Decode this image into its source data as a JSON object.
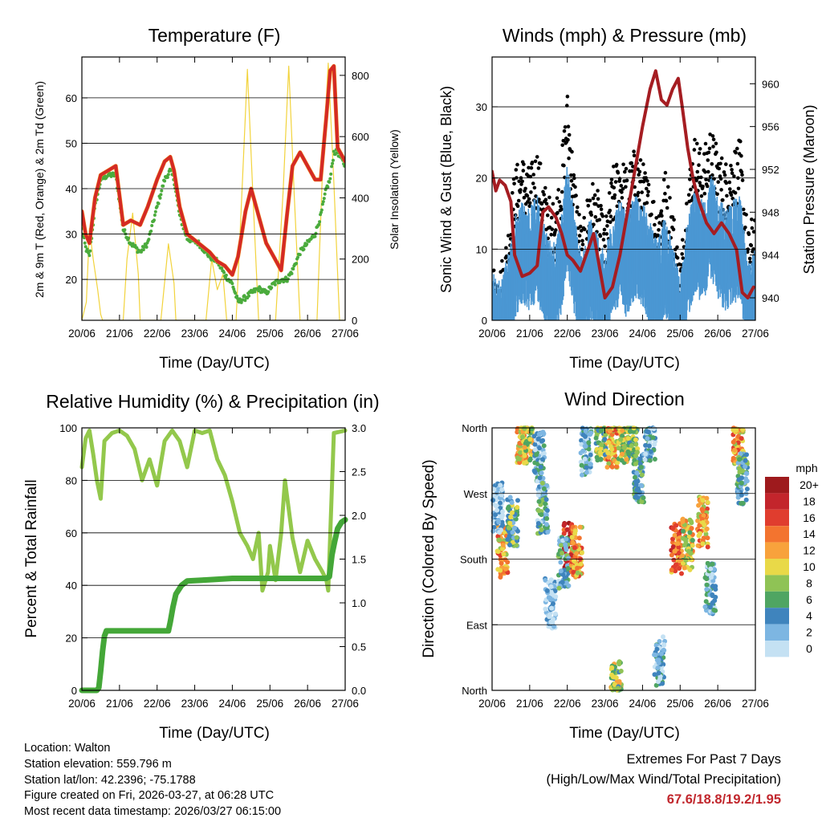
{
  "colors": {
    "temp_red": "#d42a25",
    "temp_orange": "#f08a1e",
    "dewpoint_green": "#4aab3c",
    "insolation_yellow": "#f2d33c",
    "wind_blue": "#4b97d3",
    "gust_black": "#000000",
    "pressure_maroon": "#a51d22",
    "rh_lightgreen": "#93c84c",
    "rain_green": "#44a738",
    "highlight_red": "#c1272d"
  },
  "panels": {
    "temperature": {
      "title": "Temperature (F)",
      "ylabel_left": "2m & 9m T (Red, Orange) & 2m Td (Green)",
      "ylabel_right": "Solar Insolation (Yellow)",
      "xlabel": "Time (Day/UTC)"
    },
    "winds": {
      "title": "Winds (mph) & Pressure (mb)",
      "ylabel_left": "Sonic Wind & Gust (Blue, Black)",
      "ylabel_right": "Station Pressure (Maroon)",
      "xlabel": "Time (Day/UTC)"
    },
    "humidity": {
      "title": "Relative Humidity (%) & Precipitation (in)",
      "ylabel_left": "Percent & Total Rainfall",
      "xlabel": "Time (Day/UTC)"
    },
    "direction": {
      "title": "Wind Direction",
      "ylabel_left": "Direction (Colored By Speed)",
      "xlabel": "Time (Day/UTC)"
    }
  },
  "info": {
    "location": "Location: Walton",
    "elevation": "Station elevation: 559.796 m",
    "latlon": "Station lat/lon: 42.2396; -75.1788",
    "created": "Figure created on Fri, 2026-03-27, at 06:28 UTC",
    "recent": "Most recent data timestamp: 2026/03/27 06:15:00"
  },
  "extremes": {
    "title": "Extremes For Past 7 Days",
    "subtitle": "(High/Low/Max Wind/Total Precipitation)",
    "values": "67.6/18.8/19.2/1.95"
  },
  "chart_data": [
    {
      "type": "line",
      "id": "temperature",
      "title": "Temperature (F)",
      "xlabel": "Time (Day/UTC)",
      "x_ticks": [
        "20/06",
        "21/06",
        "22/06",
        "23/06",
        "24/06",
        "25/06",
        "26/06",
        "27/06"
      ],
      "xlim": [
        0,
        7
      ],
      "ylim": [
        11,
        69
      ],
      "y_ticks": [
        20,
        30,
        40,
        50,
        60
      ],
      "y2lim": [
        0,
        860
      ],
      "y2_ticks": [
        0,
        200,
        400,
        600,
        800
      ],
      "series": [
        {
          "name": "2m T",
          "axis": "left",
          "color": "#d42a25",
          "x": [
            0,
            0.1,
            0.2,
            0.35,
            0.5,
            0.7,
            0.9,
            1.1,
            1.3,
            1.55,
            1.75,
            2.0,
            2.2,
            2.35,
            2.45,
            2.6,
            2.8,
            3.1,
            3.4,
            3.6,
            3.8,
            4.0,
            4.15,
            4.35,
            4.5,
            4.7,
            4.9,
            5.1,
            5.3,
            5.45,
            5.6,
            5.8,
            6.0,
            6.2,
            6.35,
            6.5,
            6.6,
            6.7,
            6.8,
            7.0
          ],
          "y": [
            35,
            30,
            28,
            38,
            43,
            44,
            45,
            32,
            33,
            32,
            36,
            42,
            46,
            47,
            44,
            36,
            30,
            28,
            26,
            24,
            23,
            21,
            25,
            35,
            40,
            34,
            28,
            25,
            22,
            34,
            45,
            48,
            45,
            42,
            42,
            56,
            66,
            67,
            49,
            46
          ]
        },
        {
          "name": "2m Td",
          "axis": "left",
          "color": "#4aab3c",
          "x": [
            0,
            0.1,
            0.2,
            0.35,
            0.5,
            0.7,
            0.9,
            1.1,
            1.3,
            1.55,
            1.75,
            2.0,
            2.2,
            2.35,
            2.45,
            2.6,
            2.8,
            3.1,
            3.4,
            3.6,
            3.8,
            4.0,
            4.15,
            4.35,
            4.5,
            4.7,
            4.9,
            5.1,
            5.3,
            5.45,
            5.6,
            5.8,
            6.0,
            6.2,
            6.35,
            6.5,
            6.6,
            6.7,
            6.8,
            7.0
          ],
          "y": [
            31,
            27,
            25,
            36,
            42,
            43,
            43,
            31,
            28,
            26,
            28,
            36,
            42,
            44,
            42,
            34,
            29,
            28,
            25,
            24,
            21,
            19,
            15,
            16,
            17,
            18,
            17,
            19,
            20,
            20,
            22,
            26,
            28,
            30,
            34,
            40,
            42,
            48,
            48,
            45
          ]
        },
        {
          "name": "Solar Insolation",
          "axis": "right",
          "color": "#f2d33c",
          "x": [
            0,
            0.12,
            0.2,
            0.3,
            0.42,
            0.5,
            0.55,
            1.1,
            1.2,
            1.35,
            1.5,
            1.55,
            1.8,
            2.1,
            2.3,
            2.45,
            2.5,
            2.8,
            3.3,
            3.45,
            3.6,
            3.75,
            3.85,
            3.95,
            4.1,
            4.25,
            4.4,
            4.55,
            4.7,
            4.85,
            5.0,
            5.15,
            5.35,
            5.5,
            5.65,
            5.8,
            5.95,
            6.1,
            6.25,
            6.4,
            6.55,
            6.7,
            6.85,
            7.0
          ],
          "y": [
            0,
            60,
            300,
            200,
            100,
            20,
            0,
            0,
            200,
            350,
            150,
            0,
            0,
            0,
            250,
            120,
            0,
            0,
            0,
            200,
            100,
            150,
            0,
            0,
            0,
            400,
            820,
            400,
            0,
            0,
            0,
            0,
            420,
            830,
            400,
            0,
            0,
            0,
            0,
            500,
            840,
            450,
            0,
            0
          ]
        }
      ]
    },
    {
      "type": "scatter+line",
      "id": "winds",
      "title": "Winds (mph) & Pressure (mb)",
      "xlabel": "Time (Day/UTC)",
      "x_ticks": [
        "20/06",
        "21/06",
        "22/06",
        "23/06",
        "24/06",
        "25/06",
        "26/06",
        "27/06"
      ],
      "xlim": [
        0,
        7
      ],
      "ylim": [
        0,
        37
      ],
      "y_ticks": [
        0,
        10,
        20,
        30
      ],
      "y2lim": [
        937.9,
        962.5
      ],
      "y2_ticks": [
        940,
        944,
        948,
        952,
        956,
        960
      ],
      "series": [
        {
          "name": "Sonic Wind",
          "axis": "left",
          "color": "#4b97d3",
          "x": [
            0,
            0.2,
            0.4,
            0.6,
            0.8,
            1.0,
            1.2,
            1.4,
            1.6,
            1.8,
            2.0,
            2.2,
            2.4,
            2.6,
            2.8,
            3.0,
            3.2,
            3.4,
            3.6,
            3.8,
            4.0,
            4.2,
            4.4,
            4.6,
            4.8,
            5.0,
            5.2,
            5.4,
            5.6,
            5.8,
            6.0,
            6.2,
            6.4,
            6.6,
            6.8,
            7.0
          ],
          "y": [
            2,
            1,
            4,
            10,
            12,
            11,
            13,
            9,
            6,
            9,
            17,
            10,
            4,
            10,
            8,
            4,
            11,
            12,
            10,
            13,
            12,
            9,
            6,
            11,
            6,
            1,
            10,
            14,
            12,
            16,
            13,
            11,
            12,
            13,
            3,
            6
          ]
        },
        {
          "name": "Gust",
          "axis": "left",
          "color": "#000000",
          "x": [
            0,
            0.2,
            0.4,
            0.6,
            0.8,
            1.0,
            1.2,
            1.4,
            1.6,
            1.8,
            2.0,
            2.2,
            2.4,
            2.6,
            2.8,
            3.0,
            3.2,
            3.4,
            3.6,
            3.8,
            4.0,
            4.2,
            4.4,
            4.6,
            4.8,
            5.0,
            5.2,
            5.4,
            5.6,
            5.8,
            6.0,
            6.2,
            6.4,
            6.6,
            6.8,
            7.0
          ],
          "y": [
            4,
            3,
            8,
            17,
            19,
            17,
            20,
            15,
            12,
            16,
            28,
            16,
            8,
            16,
            14,
            9,
            17,
            19,
            17,
            20,
            18,
            15,
            12,
            17,
            12,
            4,
            16,
            22,
            19,
            23,
            20,
            18,
            20,
            21,
            8,
            12
          ]
        },
        {
          "name": "Station Pressure",
          "axis": "right",
          "color": "#a51d22",
          "x": [
            0,
            0.1,
            0.2,
            0.35,
            0.5,
            0.6,
            0.8,
            1.0,
            1.2,
            1.35,
            1.5,
            1.7,
            1.85,
            2.0,
            2.15,
            2.35,
            2.5,
            2.7,
            2.85,
            3.0,
            3.2,
            3.4,
            3.6,
            3.8,
            4.0,
            4.2,
            4.35,
            4.5,
            4.65,
            4.8,
            4.95,
            5.05,
            5.2,
            5.35,
            5.5,
            5.7,
            5.9,
            6.1,
            6.3,
            6.5,
            6.65,
            6.8,
            6.95
          ],
          "y": [
            951.8,
            950,
            951,
            950.5,
            949,
            944,
            942,
            942.3,
            943,
            948,
            948.5,
            947.5,
            946,
            944,
            943.5,
            942.5,
            944,
            946,
            943,
            940,
            941,
            944,
            948,
            952,
            956,
            959.5,
            961.2,
            958.5,
            958,
            959.5,
            960.5,
            958,
            954,
            951,
            949,
            947,
            946,
            947,
            946,
            944.5,
            940.5,
            940,
            941
          ]
        }
      ]
    },
    {
      "type": "line",
      "id": "humidity",
      "title": "Relative Humidity (%) & Precipitation (in)",
      "xlabel": "Time (Day/UTC)",
      "x_ticks": [
        "20/06",
        "21/06",
        "22/06",
        "23/06",
        "24/06",
        "25/06",
        "26/06",
        "27/06"
      ],
      "xlim": [
        0,
        7
      ],
      "ylim": [
        0,
        100
      ],
      "y_ticks": [
        0,
        20,
        40,
        60,
        80,
        100
      ],
      "y2lim": [
        0,
        3.0
      ],
      "y2_ticks": [
        "0.0",
        "0.5",
        "1.0",
        "1.5",
        "2.0",
        "2.5",
        "3.0"
      ],
      "series": [
        {
          "name": "Relative Humidity",
          "axis": "left",
          "color": "#93c84c",
          "x": [
            0,
            0.1,
            0.2,
            0.3,
            0.4,
            0.5,
            0.6,
            0.8,
            1.0,
            1.2,
            1.4,
            1.6,
            1.8,
            2.0,
            2.2,
            2.4,
            2.6,
            2.8,
            3.0,
            3.2,
            3.4,
            3.6,
            3.8,
            4.0,
            4.2,
            4.4,
            4.55,
            4.7,
            4.8,
            4.95,
            5.0,
            5.15,
            5.3,
            5.4,
            5.6,
            5.8,
            6.0,
            6.2,
            6.4,
            6.5,
            6.55,
            6.7,
            7.0
          ],
          "y": [
            85,
            96,
            99,
            90,
            80,
            73,
            95,
            98,
            99,
            97,
            92,
            80,
            88,
            78,
            95,
            99,
            95,
            85,
            99,
            98,
            99,
            88,
            82,
            72,
            60,
            55,
            50,
            60,
            38,
            45,
            55,
            42,
            60,
            80,
            58,
            45,
            57,
            50,
            45,
            42,
            38,
            98,
            99
          ]
        },
        {
          "name": "Total Rainfall",
          "axis": "right",
          "color": "#44a738",
          "x": [
            0,
            0.4,
            0.45,
            0.5,
            0.55,
            0.6,
            0.65,
            2.3,
            2.35,
            2.42,
            2.5,
            2.65,
            2.8,
            3.2,
            4.0,
            4.5,
            5.0,
            5.5,
            6.0,
            6.5,
            6.58,
            6.65,
            6.72,
            6.8,
            6.9,
            7.0
          ],
          "y": [
            0,
            0,
            0.03,
            0.22,
            0.45,
            0.62,
            0.68,
            0.68,
            0.78,
            0.95,
            1.1,
            1.2,
            1.25,
            1.26,
            1.28,
            1.28,
            1.28,
            1.28,
            1.28,
            1.28,
            1.3,
            1.55,
            1.7,
            1.85,
            1.92,
            1.95
          ]
        }
      ]
    },
    {
      "type": "scatter",
      "id": "direction",
      "title": "Wind Direction",
      "xlabel": "Time (Day/UTC)",
      "x_ticks": [
        "20/06",
        "21/06",
        "22/06",
        "23/06",
        "24/06",
        "25/06",
        "26/06",
        "27/06"
      ],
      "xlim": [
        0,
        7
      ],
      "ylim": [
        0,
        360
      ],
      "y_ticks": [
        "North",
        "East",
        "South",
        "West",
        "North"
      ],
      "legend": {
        "title": "mph",
        "labels": [
          "20+",
          "18",
          "16",
          "14",
          "12",
          "10",
          "8",
          "6",
          "4",
          "2",
          "0"
        ],
        "colors": [
          "#9e1a1d",
          "#c3252c",
          "#e03d2e",
          "#f3742f",
          "#f8a23c",
          "#e9d948",
          "#8fc355",
          "#4fa562",
          "#3f84bd",
          "#7db6e2",
          "#c4e1f3"
        ]
      },
      "clusters": [
        {
          "x": 0.28,
          "dir": 190,
          "speed": 12
        },
        {
          "x": 0.15,
          "dir": 250,
          "speed": 1
        },
        {
          "x": 0.55,
          "dir": 230,
          "speed": 6
        },
        {
          "x": 0.8,
          "dir": 345,
          "speed": 11
        },
        {
          "x": 0.95,
          "dir": 350,
          "speed": 9
        },
        {
          "x": 1.25,
          "dir": 320,
          "speed": 3
        },
        {
          "x": 1.35,
          "dir": 250,
          "speed": 4
        },
        {
          "x": 1.55,
          "dir": 120,
          "speed": 1
        },
        {
          "x": 2.05,
          "dir": 195,
          "speed": 18
        },
        {
          "x": 1.9,
          "dir": 175,
          "speed": 4
        },
        {
          "x": 2.25,
          "dir": 190,
          "speed": 12
        },
        {
          "x": 2.5,
          "dir": 330,
          "speed": 3
        },
        {
          "x": 2.9,
          "dir": 350,
          "speed": 8
        },
        {
          "x": 3.2,
          "dir": 340,
          "speed": 12
        },
        {
          "x": 3.5,
          "dir": 345,
          "speed": 9
        },
        {
          "x": 3.75,
          "dir": 355,
          "speed": 7
        },
        {
          "x": 3.9,
          "dir": 290,
          "speed": 5
        },
        {
          "x": 4.2,
          "dir": 350,
          "speed": 3
        },
        {
          "x": 4.45,
          "dir": 40,
          "speed": 2
        },
        {
          "x": 4.9,
          "dir": 195,
          "speed": 14
        },
        {
          "x": 5.2,
          "dir": 200,
          "speed": 10
        },
        {
          "x": 5.6,
          "dir": 230,
          "speed": 12
        },
        {
          "x": 5.8,
          "dir": 140,
          "speed": 3
        },
        {
          "x": 6.55,
          "dir": 345,
          "speed": 12
        },
        {
          "x": 6.65,
          "dir": 290,
          "speed": 5
        },
        {
          "x": 3.3,
          "dir": 5,
          "speed": 8
        }
      ]
    }
  ]
}
